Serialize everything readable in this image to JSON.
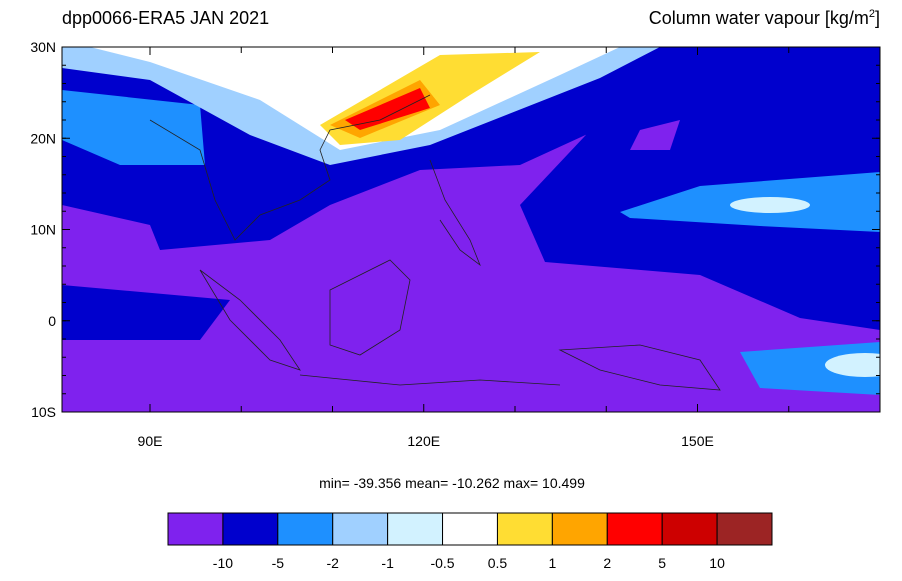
{
  "header": {
    "left": "dpp0066-ERA5  JAN 2021",
    "right": {
      "text": "Column water vapour [kg/m",
      "sup": "2",
      "close": "]"
    }
  },
  "map": {
    "lat_labels": [
      "30N",
      "20N",
      "10N",
      "0",
      "10S"
    ],
    "lon_labels": [
      "90E",
      "120E",
      "150E"
    ]
  },
  "stats": "min= -39.356  mean= -10.262  max=  10.499",
  "colorbar": {
    "colors": [
      "#7f22ee",
      "#0000cd",
      "#1e90ff",
      "#a0d0ff",
      "#d2f2ff",
      "#ffffff",
      "#ffdd33",
      "#ffa500",
      "#ff0000",
      "#cd0000",
      "#9c2424"
    ],
    "labels": [
      "-10",
      "-5",
      "-2",
      "-1",
      "-0.5",
      "0.5",
      "1",
      "2",
      "5",
      "10"
    ]
  }
}
